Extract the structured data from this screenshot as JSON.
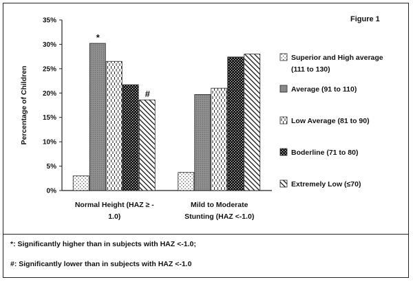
{
  "figure_label": "Figure 1",
  "chart_data": {
    "type": "bar",
    "title": "",
    "xlabel": "",
    "ylabel": "Percentage of Children",
    "ylim": [
      0,
      35
    ],
    "yticks": [
      "0%",
      "5%",
      "10%",
      "15%",
      "20%",
      "25%",
      "30%",
      "35%"
    ],
    "ytick_values": [
      0,
      5,
      10,
      15,
      20,
      25,
      30,
      35
    ],
    "grid": false,
    "legend_position": "right",
    "categories": [
      [
        "Normal Height (HAZ ≥ -",
        "1.0)"
      ],
      [
        "Mild to Moderate",
        "Stunting (HAZ <-1.0)"
      ]
    ],
    "series": [
      {
        "name": [
          "Superior and High average",
          "(111 to 130)"
        ],
        "values": [
          3.0,
          3.7
        ],
        "pattern": "dots"
      },
      {
        "name": [
          "Average (91 to 110)"
        ],
        "values": [
          30.2,
          19.7
        ],
        "pattern": "grey"
      },
      {
        "name": [
          "Low Average (81 to 90)"
        ],
        "values": [
          26.5,
          21.0
        ],
        "pattern": "vdash"
      },
      {
        "name": [
          "Boderline (71 to 80)"
        ],
        "values": [
          21.7,
          27.4
        ],
        "pattern": "check"
      },
      {
        "name": [
          "Extremely Low (≤70)"
        ],
        "values": [
          18.6,
          28.0
        ],
        "pattern": "diag"
      }
    ],
    "annotations": [
      {
        "text": "*",
        "series": 1,
        "category": 0
      },
      {
        "text": "#",
        "series": 4,
        "category": 0
      }
    ]
  },
  "notes": [
    "*: Significantly higher than in subjects with HAZ <-1.0;",
    "#: Significantly lower than in subjects with HAZ <-1.0"
  ]
}
